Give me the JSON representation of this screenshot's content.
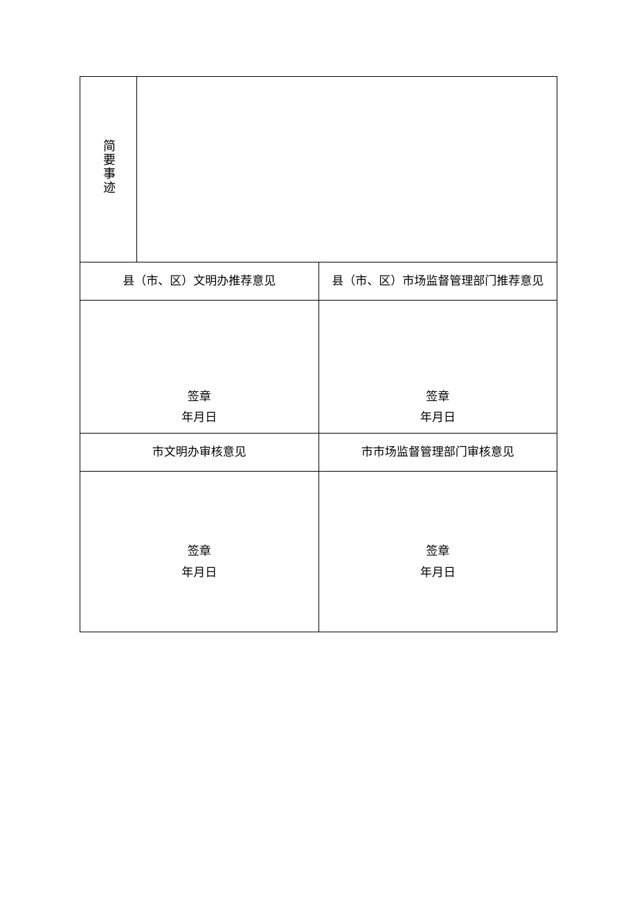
{
  "table": {
    "deeds_label": "简要事迹",
    "row1": {
      "left_header": "县（市、区）文明办推荐意见",
      "right_header": "县（市、区）市场监督管理部门推荐意见",
      "left_sig": "签章",
      "left_date": "年月日",
      "right_sig": "签章",
      "right_date": "年月日"
    },
    "row2": {
      "left_header": "市文明办审核意见",
      "right_header": "市市场监督管理部门审核意见",
      "left_sig": "签章",
      "left_date": "年月日",
      "right_sig": "签章",
      "right_date": "年月日"
    }
  },
  "style": {
    "border_color": "#000000",
    "background_color": "#ffffff",
    "font_size_body": 17,
    "font_size_label": 18,
    "font_family": "SimSun"
  }
}
